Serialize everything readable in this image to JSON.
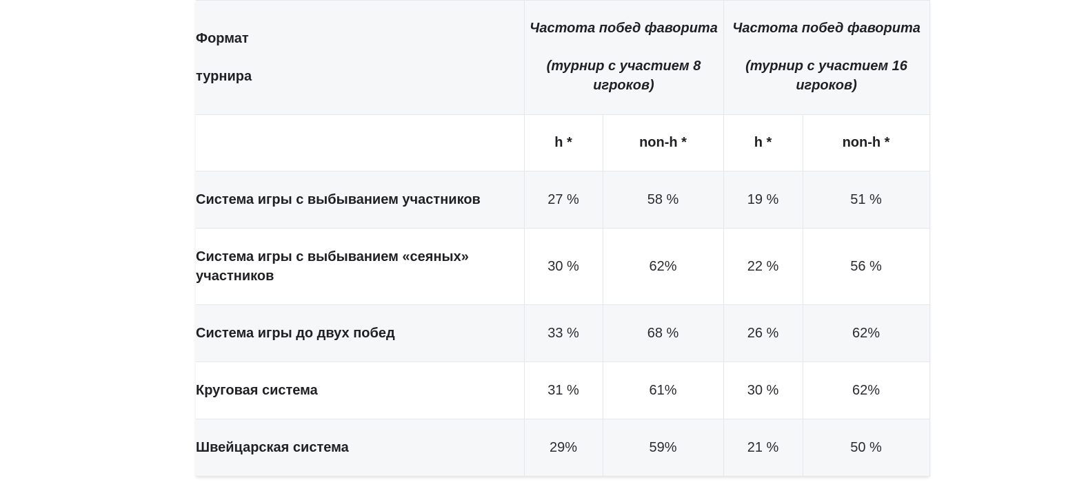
{
  "header": {
    "format_line1": "Формат",
    "format_line2": "турнира",
    "group8_title": "Частота побед фаворита",
    "group8_sub": "(турнир с участием 8 игроков)",
    "group16_title": "Частота побед фаворита",
    "group16_sub": "(турнир с участием 16 игроков)"
  },
  "subheader": [
    "h *",
    "non-h *",
    "h *",
    "non-h *"
  ],
  "rows": [
    {
      "label": "Система игры с выбыванием участников",
      "values": [
        "27 %",
        "58 %",
        "19 %",
        "51 %"
      ]
    },
    {
      "label": "Система игры с выбыванием «сеяных» участников",
      "values": [
        "30 %",
        "62%",
        "22 %",
        "56 %"
      ]
    },
    {
      "label": "Система игры до двух побед",
      "values": [
        "33 %",
        "68 %",
        "26 %",
        "62%"
      ]
    },
    {
      "label": "Круговая система",
      "values": [
        "31 %",
        "61%",
        "30 %",
        "62%"
      ]
    },
    {
      "label": "Швейцарская система",
      "values": [
        "29%",
        "59%",
        "21 %",
        "50 %"
      ]
    }
  ]
}
